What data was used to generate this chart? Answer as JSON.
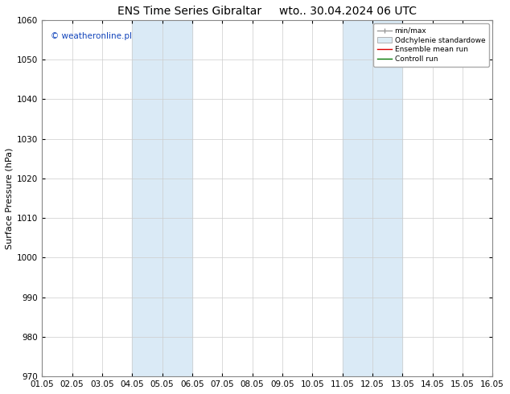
{
  "title": "ENS Time Series Gibraltar",
  "title2": "wto.. 30.04.2024 06 UTC",
  "ylabel": "Surface Pressure (hPa)",
  "ylim": [
    970,
    1060
  ],
  "yticks": [
    970,
    980,
    990,
    1000,
    1010,
    1020,
    1030,
    1040,
    1050,
    1060
  ],
  "xlim": [
    0,
    15
  ],
  "xtick_labels": [
    "01.05",
    "02.05",
    "03.05",
    "04.05",
    "05.05",
    "06.05",
    "07.05",
    "08.05",
    "09.05",
    "10.05",
    "11.05",
    "12.05",
    "13.05",
    "14.05",
    "15.05",
    "16.05"
  ],
  "shaded_bands": [
    {
      "xmin": 3,
      "xmax": 5,
      "color": "#daeaf6"
    },
    {
      "xmin": 10,
      "xmax": 12,
      "color": "#daeaf6"
    }
  ],
  "watermark": "© weatheronline.pl",
  "watermark_color": "#1144bb",
  "legend_items": [
    {
      "label": "min/max",
      "color": "#999999",
      "lw": 1.0,
      "style": "line_with_caps"
    },
    {
      "label": "Odchylenie standardowe",
      "color": "#ddecf5",
      "edgecolor": "#999999",
      "style": "box"
    },
    {
      "label": "Ensemble mean run",
      "color": "#dd0000",
      "lw": 1.0,
      "style": "line"
    },
    {
      "label": "Controll run",
      "color": "#007700",
      "lw": 1.0,
      "style": "line"
    }
  ],
  "background_color": "#ffffff",
  "plot_bg_color": "#ffffff",
  "grid_color": "#cccccc",
  "title_fontsize": 10,
  "ylabel_fontsize": 8,
  "tick_fontsize": 7.5
}
